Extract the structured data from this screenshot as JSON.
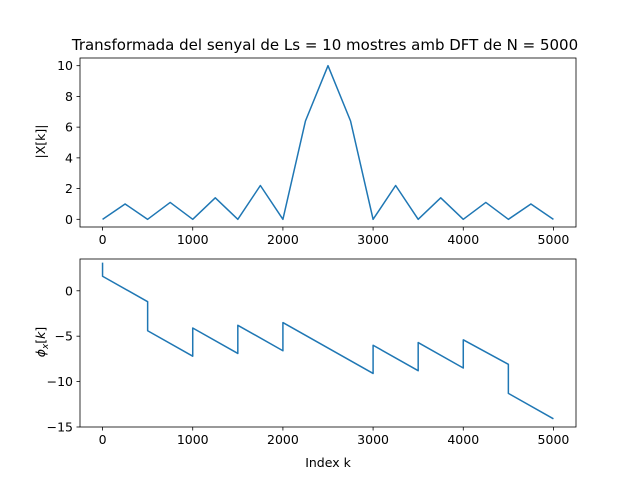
{
  "chart_data": [
    {
      "type": "line",
      "title": "Transformada del senyal de Ls = 10 mostres amb DFT de N = 5000",
      "xlabel": "",
      "ylabel": "|X[k]|",
      "xlim": [
        -250,
        5250
      ],
      "ylim": [
        -0.5,
        10.5
      ],
      "xticks": [
        0,
        1000,
        2000,
        3000,
        4000,
        5000
      ],
      "yticks": [
        0,
        2,
        4,
        6,
        8,
        10
      ],
      "grid": false,
      "line_color": "#1f77b4",
      "series": [
        {
          "x": [
            0,
            250,
            500,
            750,
            1000,
            1250,
            1500,
            1750,
            2000,
            2250,
            2500,
            2750,
            3000,
            3250,
            3500,
            3750,
            4000,
            4250,
            4500,
            4750,
            5000
          ],
          "y": [
            0,
            1.0,
            0,
            1.1,
            0,
            1.4,
            0,
            2.2,
            0,
            6.4,
            10.0,
            6.4,
            0,
            2.2,
            0,
            1.4,
            0,
            1.1,
            0,
            1.0,
            0
          ]
        }
      ]
    },
    {
      "type": "line",
      "title": "",
      "xlabel": "Index k",
      "ylabel": "φx[k]",
      "xlim": [
        -250,
        5250
      ],
      "ylim": [
        -15,
        3.5
      ],
      "xticks": [
        0,
        1000,
        2000,
        3000,
        4000,
        5000
      ],
      "yticks": [
        0,
        -5,
        -10,
        -15
      ],
      "grid": false,
      "line_color": "#1f77b4",
      "series": [
        {
          "x": [
            0,
            0,
            500,
            500,
            1000,
            1000,
            1500,
            1500,
            2000,
            2000,
            3000,
            3000,
            3500,
            3500,
            4000,
            4000,
            4500,
            4500,
            5000
          ],
          "y": [
            3.1,
            1.6,
            -1.2,
            -4.4,
            -7.2,
            -4.1,
            -6.9,
            -3.8,
            -6.6,
            -3.5,
            -9.1,
            -6.0,
            -8.8,
            -5.7,
            -8.5,
            -5.4,
            -8.1,
            -11.3,
            -14.1
          ]
        }
      ]
    }
  ]
}
